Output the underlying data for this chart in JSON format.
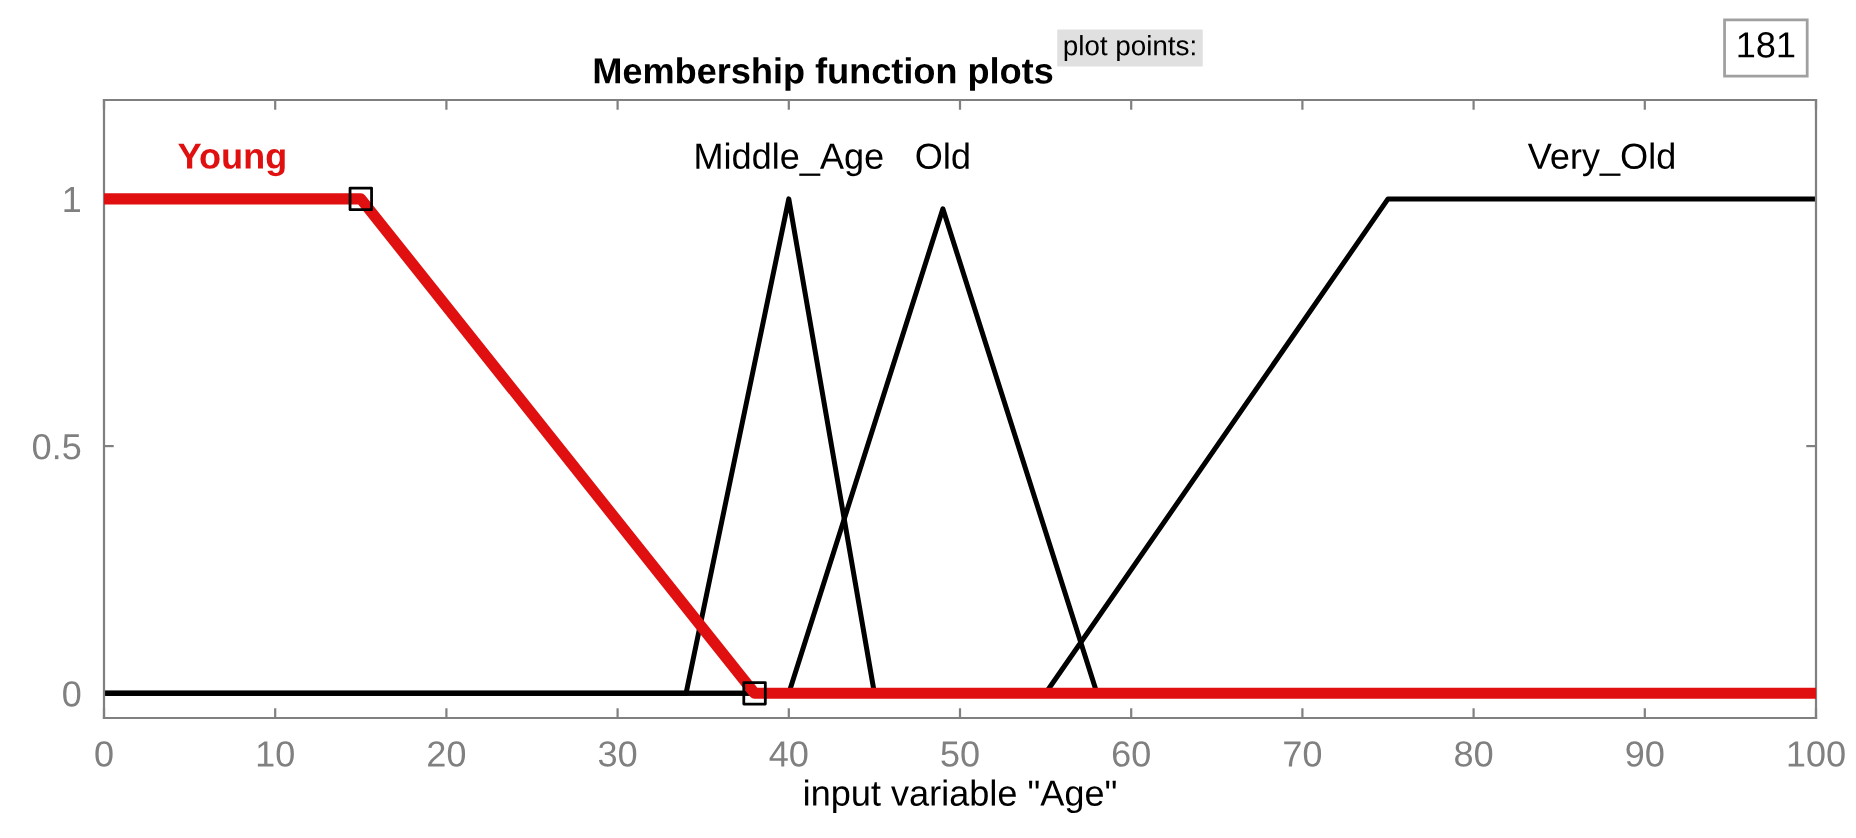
{
  "chart_data": {
    "type": "line",
    "title": "Membership function plots",
    "xlabel": "input variable \"Age\"",
    "xlim": [
      0,
      100
    ],
    "ylim": [
      -0.05,
      1.2
    ],
    "xticks": [
      0,
      10,
      20,
      30,
      40,
      50,
      60,
      70,
      80,
      90,
      100
    ],
    "yticks": [
      0,
      0.5,
      1
    ],
    "grid": false,
    "line_style": "solid",
    "annotations": [
      "plot points:",
      "181"
    ],
    "series": [
      {
        "name": "Middle_Age",
        "color": "#000000",
        "x": [
          0,
          34,
          40,
          45,
          100
        ],
        "values": [
          0,
          0,
          1,
          0,
          0
        ]
      },
      {
        "name": "Old",
        "color": "#000000",
        "x": [
          0,
          40,
          49,
          58,
          100
        ],
        "values": [
          0,
          0,
          0.98,
          0,
          0
        ]
      },
      {
        "name": "Very_Old",
        "color": "#000000",
        "x": [
          0,
          55,
          75,
          100
        ],
        "values": [
          0,
          0,
          1,
          1
        ]
      },
      {
        "name": "Young",
        "color": "#e01010",
        "x": [
          0,
          15,
          38,
          100
        ],
        "values": [
          1,
          1,
          0,
          0
        ]
      },
      {
        "type": "scatter",
        "marker": "square",
        "color": "#000000",
        "x": [
          15,
          38
        ],
        "values": [
          1,
          0
        ]
      }
    ]
  }
}
